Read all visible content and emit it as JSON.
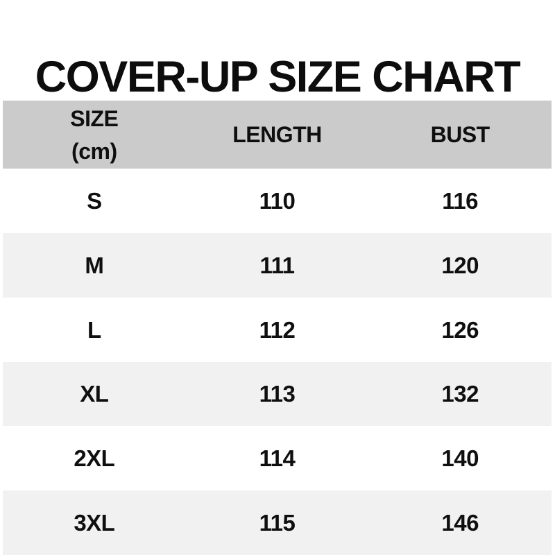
{
  "title": "COVER-UP SIZE CHART",
  "chart_data": {
    "type": "table",
    "title": "COVER-UP SIZE CHART",
    "columns": [
      "SIZE (cm)",
      "LENGTH",
      "BUST"
    ],
    "header": {
      "size_label": "SIZE",
      "size_unit": "(cm)",
      "length_label": "LENGTH",
      "bust_label": "BUST"
    },
    "rows": [
      {
        "size": "S",
        "length": "110",
        "bust": "116"
      },
      {
        "size": "M",
        "length": "111",
        "bust": "120"
      },
      {
        "size": "L",
        "length": "112",
        "bust": "126"
      },
      {
        "size": "XL",
        "length": "113",
        "bust": "132"
      },
      {
        "size": "2XL",
        "length": "114",
        "bust": "140"
      },
      {
        "size": "3XL",
        "length": "115",
        "bust": "146"
      }
    ],
    "layout": {
      "striped": true,
      "header_position": "top",
      "columns_aligned": "center"
    }
  },
  "colors": {
    "background": "#ffffff",
    "header_bg": "#cbcbcb",
    "stripe_bg": "#f1f1f1",
    "text": "#0d0d0d"
  }
}
